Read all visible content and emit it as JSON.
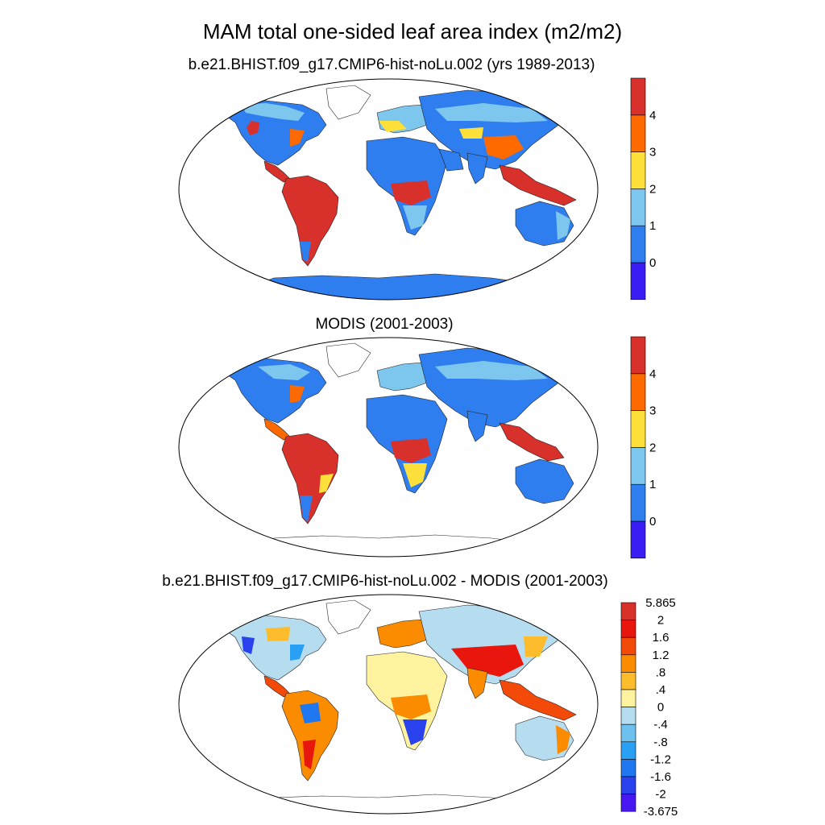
{
  "figure": {
    "title": "MAM total one-sided leaf area index (m2/m2)"
  },
  "chart_data": [
    {
      "type": "heatmap",
      "subtitle": "b.e21.BHIST.f09_g17.CMIP6-hist-noLu.002 (yrs 1989-2013)",
      "projection": "Robinson world map",
      "colorbar": {
        "tick_labels": [
          "0",
          "1",
          "2",
          "3",
          "4"
        ],
        "colors": [
          "#3a1cf5",
          "#2e7ef0",
          "#7dc6ee",
          "#fde03a",
          "#fe6a00",
          "#d8302a"
        ]
      }
    },
    {
      "type": "heatmap",
      "subtitle": "MODIS (2001-2003)",
      "projection": "Robinson world map",
      "colorbar": {
        "tick_labels": [
          "0",
          "1",
          "2",
          "3",
          "4"
        ],
        "colors": [
          "#3a1cf5",
          "#2e7ef0",
          "#7dc6ee",
          "#fde03a",
          "#fe6a00",
          "#d8302a"
        ]
      }
    },
    {
      "type": "heatmap",
      "subtitle": "b.e21.BHIST.f09_g17.CMIP6-hist-noLu.002 - MODIS (2001-2003)",
      "projection": "Robinson world map",
      "colorbar": {
        "tick_labels": [
          "5.865",
          "2",
          "1.6",
          "1.2",
          ".8",
          ".4",
          "0",
          "-.4",
          "-.8",
          "-1.2",
          "-1.6",
          "-2",
          "-3.675"
        ],
        "colors": [
          "#d8302a",
          "#e8160c",
          "#f34a0a",
          "#fb8c00",
          "#fcbc2c",
          "#fff3a0",
          "#b6dcf0",
          "#6ec0ee",
          "#2aa0f4",
          "#1f78f0",
          "#2a42ee",
          "#4818f2"
        ]
      }
    }
  ]
}
